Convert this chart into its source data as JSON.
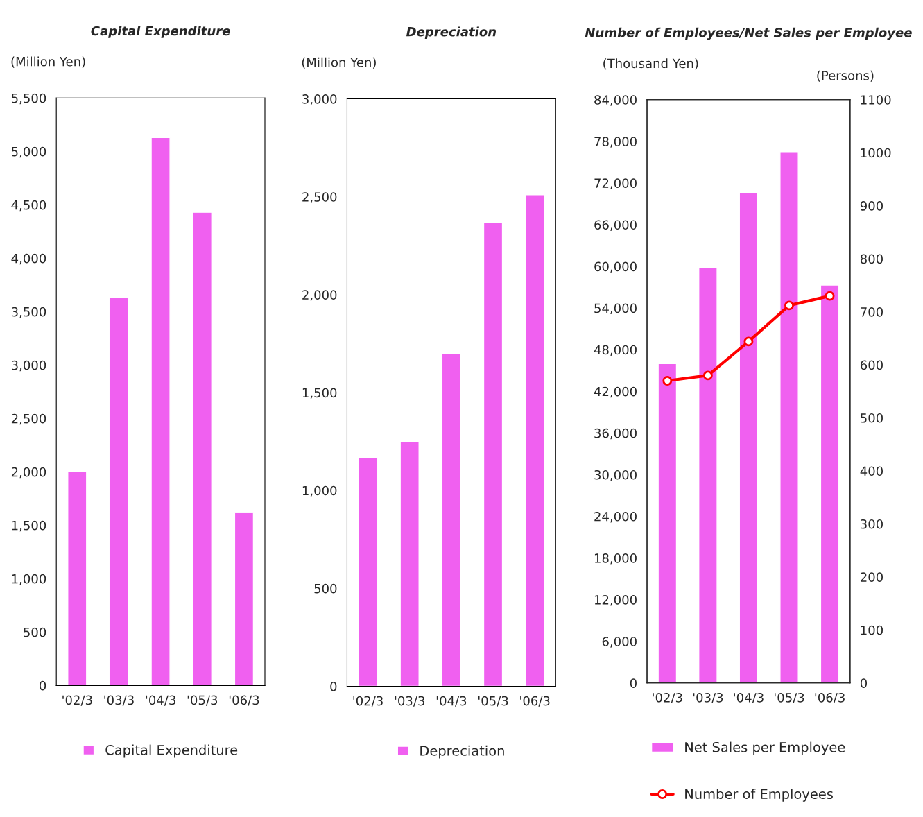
{
  "chart_data": [
    {
      "type": "bar",
      "title": "Capital Expenditure",
      "ylabel": "(Million Yen)",
      "categories": [
        "'02/3",
        "'03/3",
        "'04/3",
        "'05/3",
        "'06/3"
      ],
      "series": [
        {
          "name": "Capital Expenditure",
          "color": "#f060f0",
          "values": [
            2000,
            3630,
            5130,
            4430,
            1620
          ]
        }
      ],
      "ylim": [
        0,
        5500
      ],
      "yticks": [
        0,
        500,
        {
          "value": 1000,
          "label": "1,000"
        },
        {
          "value": 1500,
          "label": "1,500"
        },
        {
          "value": 2000,
          "label": "2,000"
        },
        {
          "value": 2500,
          "label": "2,500"
        },
        {
          "value": 3000,
          "label": "3,000"
        },
        {
          "value": 3500,
          "label": "3,500"
        },
        {
          "value": 4000,
          "label": "4,000"
        },
        {
          "value": 4500,
          "label": "4,500"
        },
        {
          "value": 5000,
          "label": "5,000"
        },
        {
          "value": 5500,
          "label": "5,500"
        }
      ],
      "legend": "bottom",
      "grid": false
    },
    {
      "type": "bar",
      "title": "Depreciation",
      "ylabel": "(Million Yen)",
      "categories": [
        "'02/3",
        "'03/3",
        "'04/3",
        "'05/3",
        "'06/3"
      ],
      "series": [
        {
          "name": "Depreciation",
          "color": "#f060f0",
          "values": [
            1170,
            1250,
            1700,
            2370,
            2510
          ]
        }
      ],
      "ylim": [
        0,
        3000
      ],
      "yticks": [
        0,
        500,
        {
          "value": 1000,
          "label": "1,000"
        },
        {
          "value": 1500,
          "label": "1,500"
        },
        {
          "value": 2000,
          "label": "2,000"
        },
        {
          "value": 2500,
          "label": "2,500"
        },
        {
          "value": 3000,
          "label": "3,000"
        }
      ],
      "legend": "bottom",
      "grid": false
    },
    {
      "type": "bar",
      "title": "Number of Employees/Net Sales per Employee",
      "ylabel": "(Thousand Yen)",
      "y2label": "(Persons)",
      "categories": [
        "'02/3",
        "'03/3",
        "'04/3",
        "'05/3",
        "'06/3"
      ],
      "series": [
        {
          "name": "Net Sales per Employee",
          "color": "#f060f0",
          "values": [
            46000,
            59800,
            70600,
            76500,
            57300
          ]
        },
        {
          "name": "Number of Employees",
          "type": "line",
          "axis": "y2",
          "color": "#ff0000",
          "marker": "circle",
          "values": [
            570,
            580,
            644,
            712,
            730
          ]
        }
      ],
      "ylim": [
        0,
        84000
      ],
      "yticks": [
        0,
        {
          "value": 6000,
          "label": "6,000"
        },
        {
          "value": 12000,
          "label": "12,000"
        },
        {
          "value": 18000,
          "label": "18,000"
        },
        {
          "value": 24000,
          "label": "24,000"
        },
        {
          "value": 30000,
          "label": "30,000"
        },
        {
          "value": 36000,
          "label": "36,000"
        },
        {
          "value": 42000,
          "label": "42,000"
        },
        {
          "value": 48000,
          "label": "48,000"
        },
        {
          "value": 54000,
          "label": "54,000"
        },
        {
          "value": 60000,
          "label": "60,000"
        },
        {
          "value": 66000,
          "label": "66,000"
        },
        {
          "value": 72000,
          "label": "72,000"
        },
        {
          "value": 78000,
          "label": "78,000"
        },
        {
          "value": 84000,
          "label": "84,000"
        }
      ],
      "y2lim": [
        0,
        1100
      ],
      "y2ticks": [
        0,
        100,
        200,
        300,
        400,
        500,
        600,
        700,
        800,
        900,
        1000,
        1100
      ],
      "legend": "bottom",
      "grid": false
    }
  ]
}
